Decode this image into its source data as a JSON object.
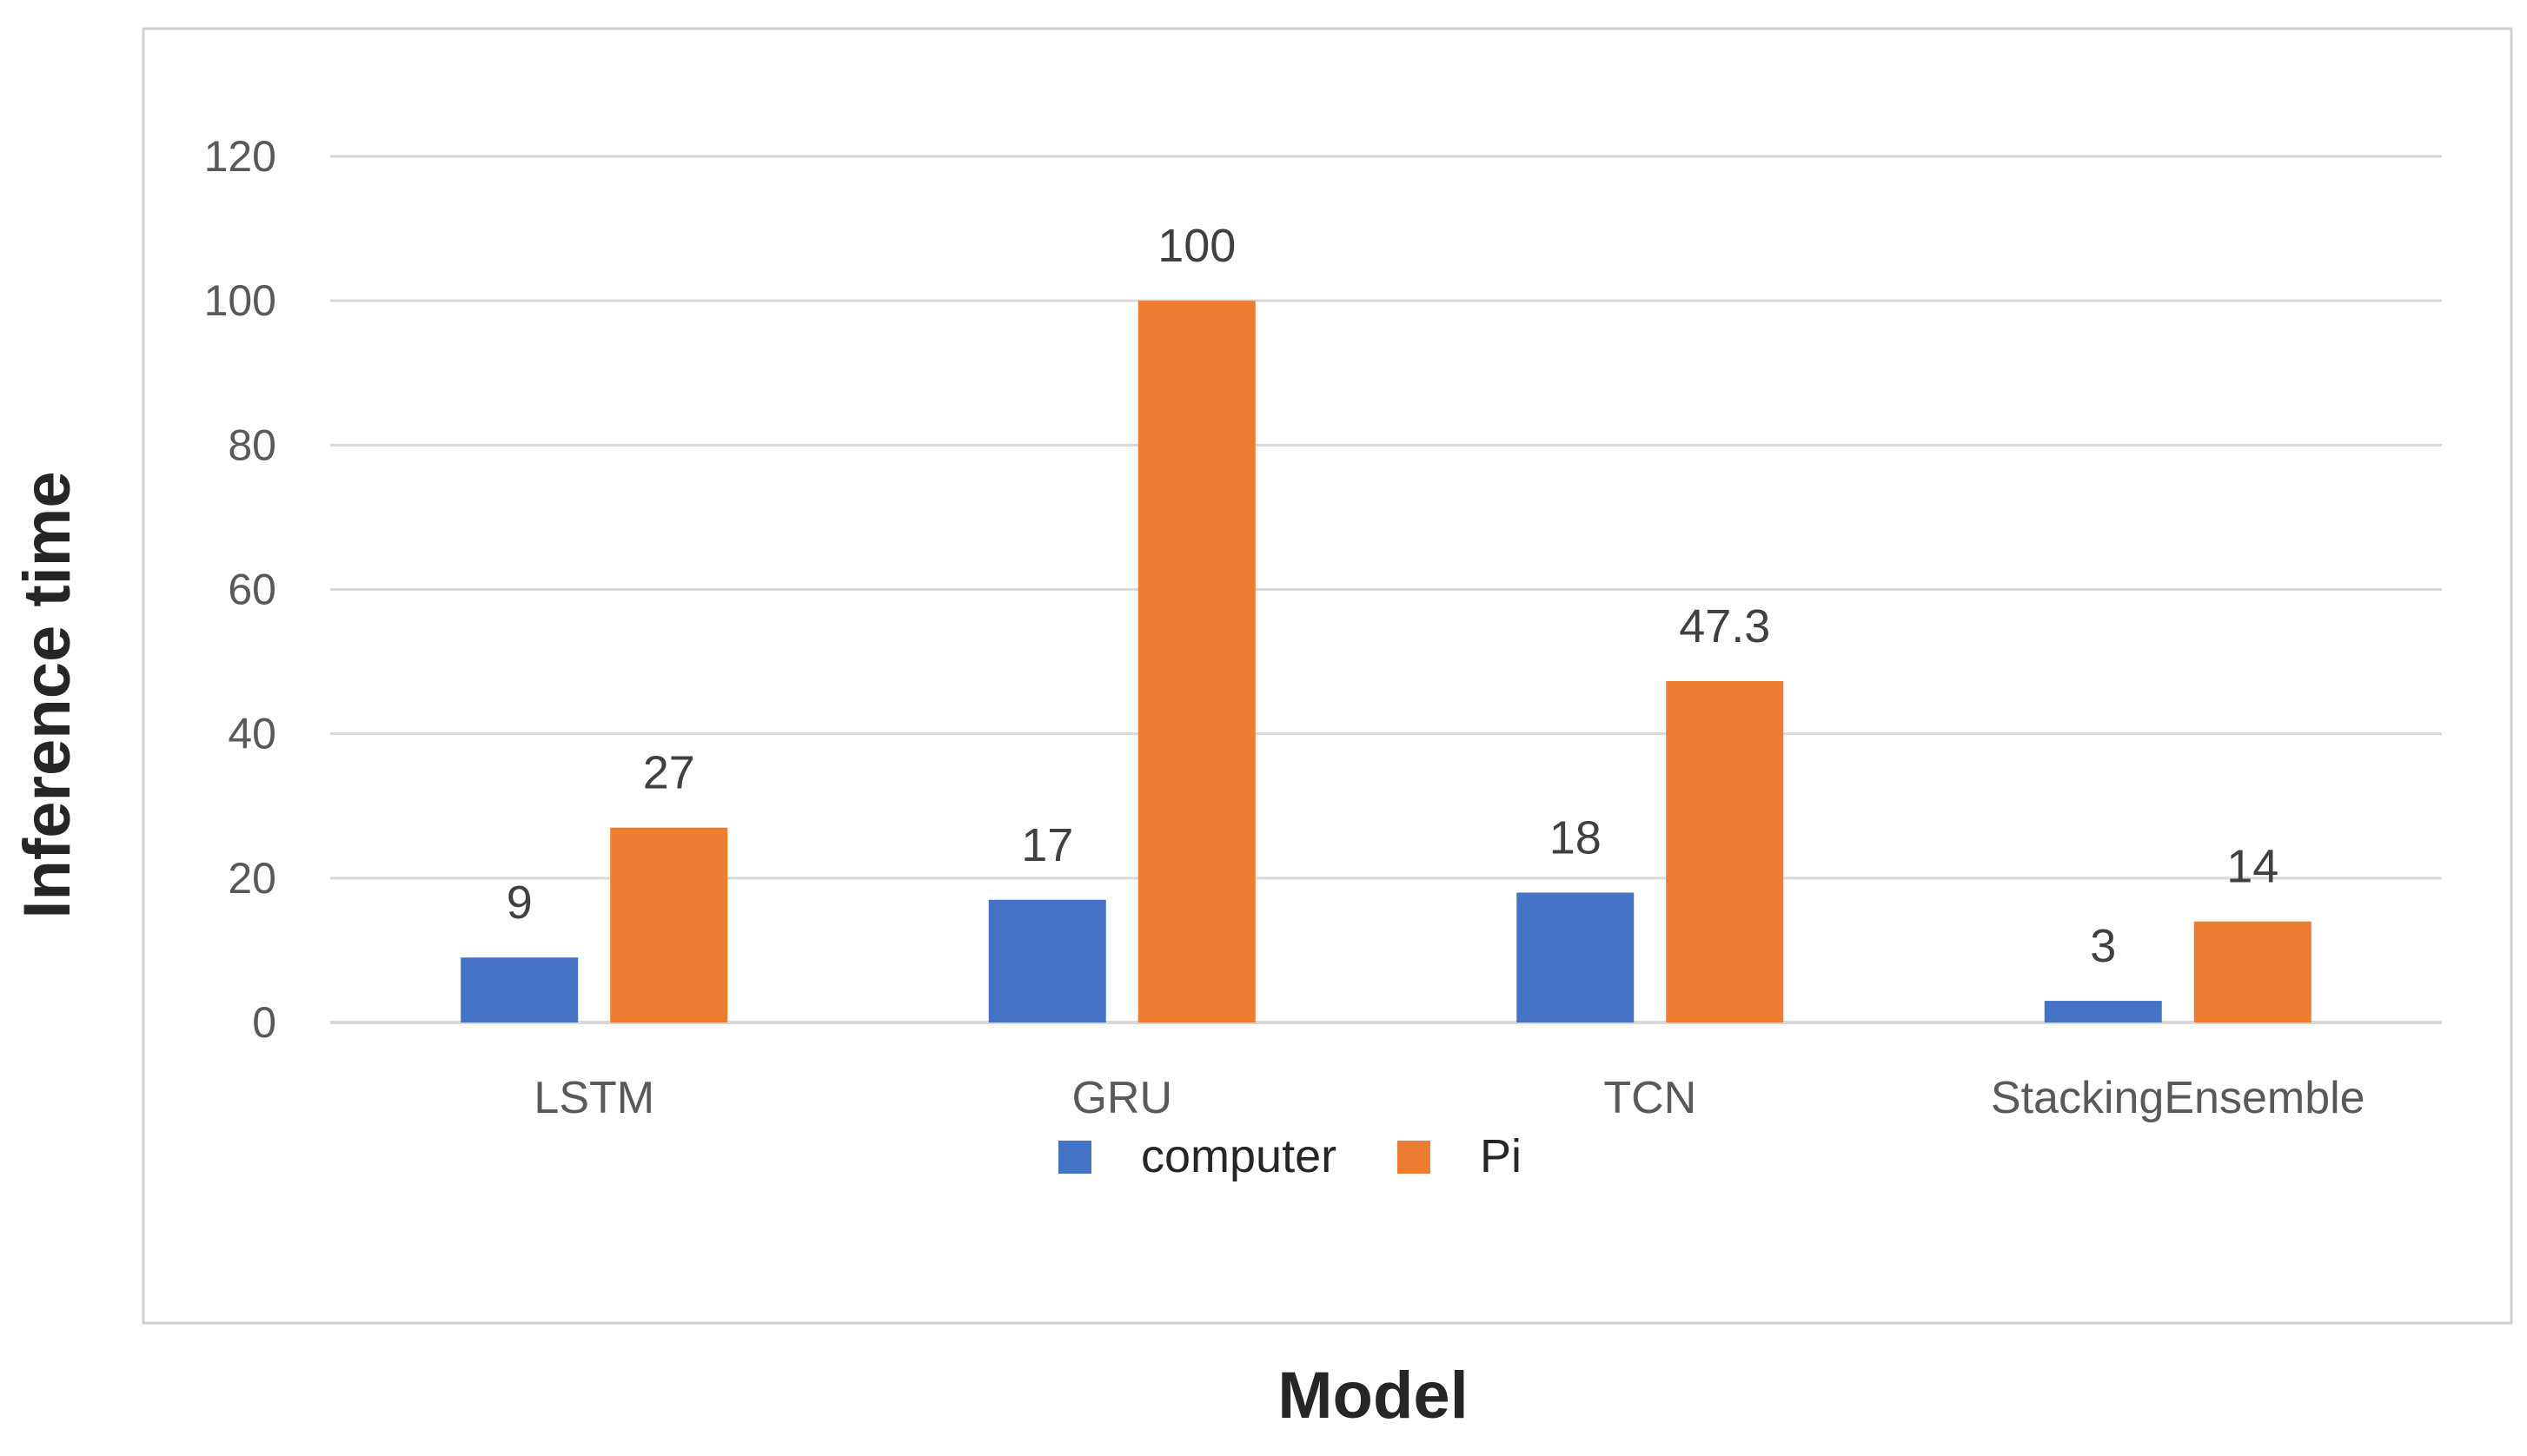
{
  "chart_data": {
    "type": "bar",
    "title": "",
    "xlabel": "Model",
    "ylabel": "Inference time",
    "categories": [
      "LSTM",
      "GRU",
      "TCN",
      "StackingEnsemble"
    ],
    "series": [
      {
        "name": "computer",
        "color": "#4472c4",
        "values": [
          9,
          17,
          18,
          3
        ],
        "labels": [
          "9",
          "17",
          "18",
          "3"
        ]
      },
      {
        "name": "Pi",
        "color": "#ed7d31",
        "values": [
          27,
          100,
          47.3,
          14
        ],
        "labels": [
          "27",
          "100",
          "47.3",
          "14"
        ]
      }
    ],
    "ylim": [
      0,
      120
    ],
    "yticks": [
      0,
      20,
      40,
      60,
      80,
      100,
      120
    ],
    "grid": true,
    "legend_position": "bottom"
  }
}
